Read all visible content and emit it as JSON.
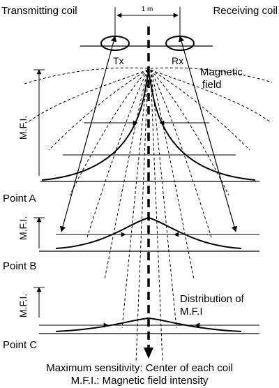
{
  "labels": {
    "transmitting_coil": "Transmitting coil",
    "receiving_coil": "Receiving coil",
    "distance": "1 m",
    "tx": "Tx",
    "rx": "Rx",
    "magnetic_field_line1": "Magnetic",
    "magnetic_field_line2": "field",
    "mfi_a": "M.F.I.",
    "mfi_b": "M.F.I.",
    "mfi_c": "M.F.I.",
    "point_a": "Point A",
    "point_b": "Point B",
    "point_c": "Point C",
    "distribution_line1": "Distribution of",
    "distribution_line2": "M.F.I",
    "caption_line1": "Maximum sensitivity: Center of each coil",
    "caption_line2": "M.F.I.: Magnetic field intensity"
  }
}
